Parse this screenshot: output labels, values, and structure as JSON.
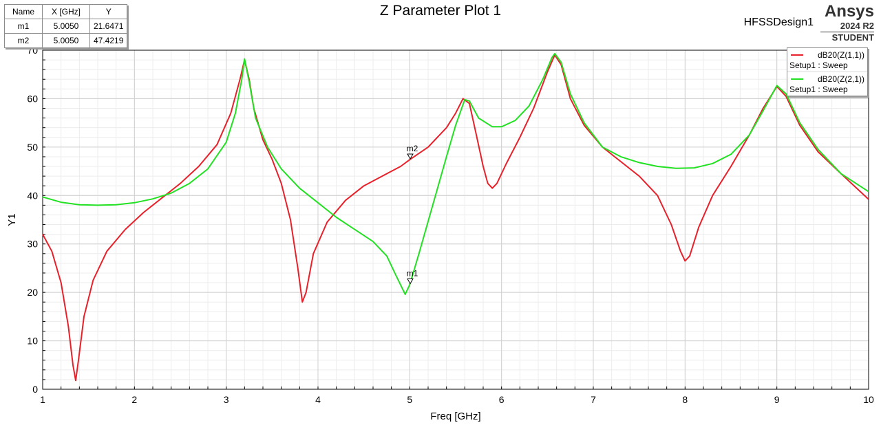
{
  "header": {
    "title": "Z Parameter Plot 1",
    "design_name": "HFSSDesign1",
    "brand": "Ansys",
    "version": "2024 R2",
    "edition": "STUDENT"
  },
  "marker_table": {
    "columns": [
      "Name",
      "X [GHz]",
      "Y"
    ],
    "rows": [
      [
        "m1",
        "5.0050",
        "21.6471"
      ],
      [
        "m2",
        "5.0050",
        "47.4219"
      ]
    ]
  },
  "legend": [
    {
      "name": "dB20(Z(1,1))",
      "sub": "Setup1 : Sweep",
      "color": "#e8202a"
    },
    {
      "name": "dB20(Z(2,1))",
      "sub": "Setup1 : Sweep",
      "color": "#22e022"
    }
  ],
  "chart_data": {
    "type": "line",
    "title": "Z Parameter Plot 1",
    "xlabel": "Freq [GHz]",
    "ylabel": "Y1",
    "xlim": [
      1,
      10
    ],
    "ylim": [
      0,
      70
    ],
    "xticks": [
      1,
      2,
      3,
      4,
      5,
      6,
      7,
      8,
      9,
      10
    ],
    "yticks": [
      0,
      10,
      20,
      30,
      40,
      50,
      60,
      70
    ],
    "grid": true,
    "legend_position": "top-right",
    "series": [
      {
        "name": "dB20(Z(1,1))",
        "color": "#e8202a",
        "points": [
          [
            1.0,
            32.0
          ],
          [
            1.1,
            28.5
          ],
          [
            1.2,
            22.0
          ],
          [
            1.28,
            13.0
          ],
          [
            1.33,
            5.0
          ],
          [
            1.36,
            1.8
          ],
          [
            1.39,
            6.0
          ],
          [
            1.45,
            15.0
          ],
          [
            1.55,
            22.5
          ],
          [
            1.7,
            28.5
          ],
          [
            1.9,
            33.0
          ],
          [
            2.1,
            36.5
          ],
          [
            2.3,
            39.5
          ],
          [
            2.5,
            42.5
          ],
          [
            2.7,
            46.0
          ],
          [
            2.9,
            50.5
          ],
          [
            3.05,
            57.0
          ],
          [
            3.15,
            64.0
          ],
          [
            3.2,
            68.0
          ],
          [
            3.25,
            64.0
          ],
          [
            3.3,
            58.0
          ],
          [
            3.4,
            51.5
          ],
          [
            3.5,
            47.5
          ],
          [
            3.6,
            42.5
          ],
          [
            3.7,
            35.0
          ],
          [
            3.78,
            25.0
          ],
          [
            3.83,
            18.0
          ],
          [
            3.87,
            20.0
          ],
          [
            3.95,
            28.0
          ],
          [
            4.1,
            34.5
          ],
          [
            4.3,
            39.0
          ],
          [
            4.5,
            42.0
          ],
          [
            4.7,
            44.0
          ],
          [
            4.9,
            46.0
          ],
          [
            5.0,
            47.4
          ],
          [
            5.2,
            50.0
          ],
          [
            5.4,
            54.0
          ],
          [
            5.5,
            57.0
          ],
          [
            5.58,
            60.0
          ],
          [
            5.65,
            59.0
          ],
          [
            5.72,
            53.0
          ],
          [
            5.8,
            46.0
          ],
          [
            5.85,
            42.5
          ],
          [
            5.9,
            41.5
          ],
          [
            5.95,
            42.5
          ],
          [
            6.05,
            46.5
          ],
          [
            6.2,
            52.0
          ],
          [
            6.35,
            58.0
          ],
          [
            6.5,
            65.5
          ],
          [
            6.58,
            69.0
          ],
          [
            6.65,
            67.0
          ],
          [
            6.75,
            60.0
          ],
          [
            6.9,
            54.5
          ],
          [
            7.1,
            50.0
          ],
          [
            7.3,
            47.0
          ],
          [
            7.5,
            44.0
          ],
          [
            7.7,
            40.0
          ],
          [
            7.85,
            34.0
          ],
          [
            7.95,
            28.5
          ],
          [
            8.0,
            26.5
          ],
          [
            8.05,
            27.5
          ],
          [
            8.15,
            33.5
          ],
          [
            8.3,
            40.0
          ],
          [
            8.5,
            46.0
          ],
          [
            8.7,
            52.5
          ],
          [
            8.85,
            58.0
          ],
          [
            9.0,
            62.5
          ],
          [
            9.1,
            60.5
          ],
          [
            9.25,
            54.5
          ],
          [
            9.45,
            49.0
          ],
          [
            9.7,
            44.5
          ],
          [
            10.0,
            39.2
          ]
        ]
      },
      {
        "name": "dB20(Z(2,1))",
        "color": "#22e022",
        "points": [
          [
            1.0,
            39.7
          ],
          [
            1.2,
            38.6
          ],
          [
            1.4,
            38.1
          ],
          [
            1.6,
            38.0
          ],
          [
            1.8,
            38.1
          ],
          [
            2.0,
            38.5
          ],
          [
            2.2,
            39.3
          ],
          [
            2.4,
            40.5
          ],
          [
            2.6,
            42.5
          ],
          [
            2.8,
            45.5
          ],
          [
            3.0,
            51.0
          ],
          [
            3.1,
            57.0
          ],
          [
            3.17,
            64.0
          ],
          [
            3.2,
            68.2
          ],
          [
            3.25,
            63.5
          ],
          [
            3.32,
            56.0
          ],
          [
            3.45,
            50.0
          ],
          [
            3.6,
            45.5
          ],
          [
            3.8,
            41.5
          ],
          [
            4.0,
            38.5
          ],
          [
            4.2,
            35.5
          ],
          [
            4.4,
            33.0
          ],
          [
            4.6,
            30.5
          ],
          [
            4.75,
            27.5
          ],
          [
            4.85,
            23.5
          ],
          [
            4.95,
            19.6
          ],
          [
            5.0,
            21.6
          ],
          [
            5.1,
            28.0
          ],
          [
            5.25,
            38.0
          ],
          [
            5.4,
            48.0
          ],
          [
            5.5,
            54.5
          ],
          [
            5.6,
            59.8
          ],
          [
            5.65,
            59.5
          ],
          [
            5.75,
            56.0
          ],
          [
            5.9,
            54.2
          ],
          [
            6.0,
            54.2
          ],
          [
            6.15,
            55.5
          ],
          [
            6.3,
            58.5
          ],
          [
            6.45,
            64.0
          ],
          [
            6.55,
            68.5
          ],
          [
            6.58,
            69.3
          ],
          [
            6.65,
            67.5
          ],
          [
            6.75,
            61.0
          ],
          [
            6.9,
            55.0
          ],
          [
            7.1,
            50.0
          ],
          [
            7.3,
            48.0
          ],
          [
            7.5,
            46.8
          ],
          [
            7.7,
            46.0
          ],
          [
            7.9,
            45.6
          ],
          [
            8.1,
            45.7
          ],
          [
            8.3,
            46.6
          ],
          [
            8.5,
            48.5
          ],
          [
            8.7,
            52.5
          ],
          [
            8.85,
            57.5
          ],
          [
            9.0,
            62.7
          ],
          [
            9.1,
            61.0
          ],
          [
            9.25,
            55.0
          ],
          [
            9.45,
            49.5
          ],
          [
            9.7,
            44.5
          ],
          [
            10.0,
            40.8
          ]
        ]
      }
    ],
    "markers": [
      {
        "label": "m1",
        "series": 1,
        "x": 5.005,
        "y": 21.6471
      },
      {
        "label": "m2",
        "series": 0,
        "x": 5.005,
        "y": 47.4219
      }
    ]
  }
}
